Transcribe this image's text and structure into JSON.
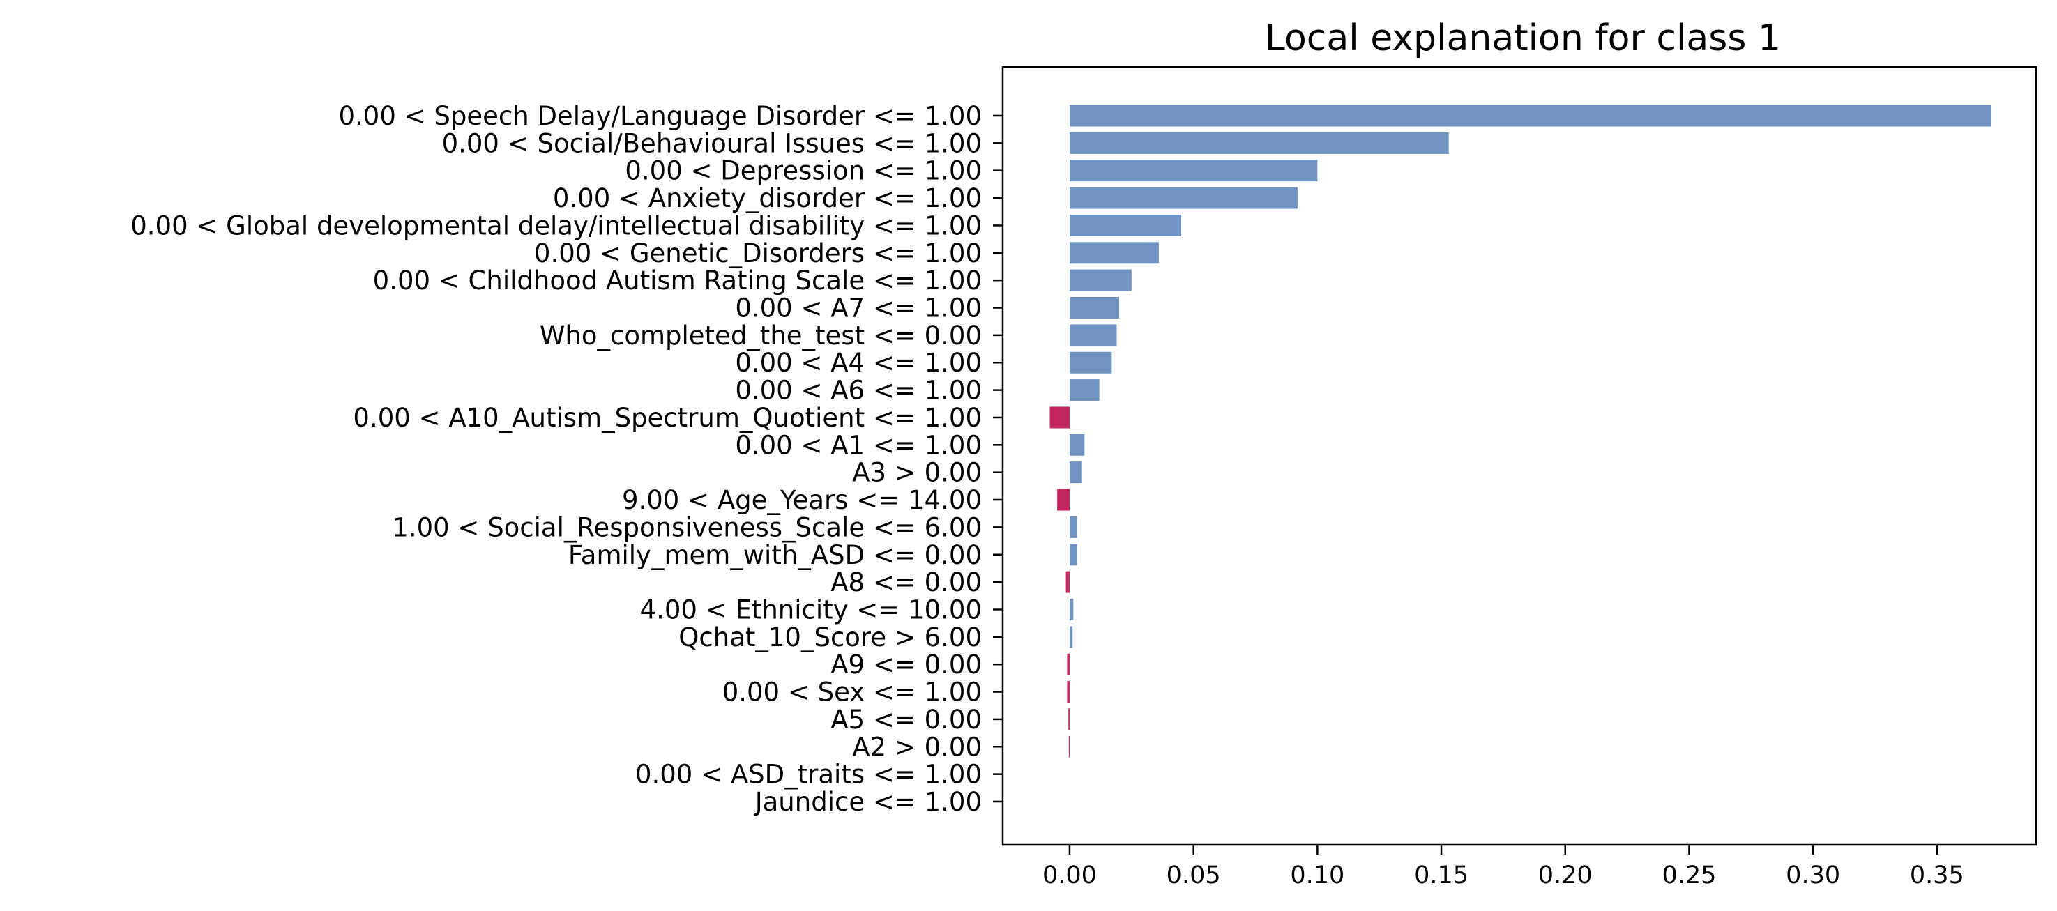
{
  "chart_data": {
    "type": "bar",
    "orientation": "horizontal",
    "title": "Local explanation for class 1",
    "xlabel": "",
    "ylabel": "",
    "xlim": [
      -0.027,
      0.39
    ],
    "xticks": [
      0.0,
      0.05,
      0.1,
      0.15,
      0.2,
      0.25,
      0.3,
      0.35
    ],
    "xtick_labels": [
      "0.00",
      "0.05",
      "0.10",
      "0.15",
      "0.20",
      "0.25",
      "0.30",
      "0.35"
    ],
    "grid": false,
    "legend": "none",
    "colors": {
      "positive": "#7193c1",
      "negative": "#c2255f"
    },
    "categories": [
      "0.00 < Speech Delay/Language Disorder <= 1.00",
      "0.00 < Social/Behavioural Issues <= 1.00",
      "0.00 < Depression <= 1.00",
      "0.00 < Anxiety_disorder <= 1.00",
      "0.00 < Global developmental delay/intellectual disability <= 1.00",
      "0.00 < Genetic_Disorders <= 1.00",
      "0.00 < Childhood Autism Rating Scale <= 1.00",
      "0.00 < A7 <= 1.00",
      "Who_completed_the_test <= 0.00",
      "0.00 < A4 <= 1.00",
      "0.00 < A6 <= 1.00",
      "0.00 < A10_Autism_Spectrum_Quotient <= 1.00",
      "0.00 < A1 <= 1.00",
      "A3 > 0.00",
      "9.00 < Age_Years <= 14.00",
      "1.00 < Social_Responsiveness_Scale <= 6.00",
      "Family_mem_with_ASD <= 0.00",
      "A8 <= 0.00",
      "4.00 < Ethnicity <= 10.00",
      "Qchat_10_Score > 6.00",
      "A9 <= 0.00",
      "0.00 < Sex <= 1.00",
      "A5 <= 0.00",
      "A2 > 0.00",
      "0.00 < ASD_traits <= 1.00",
      "Jaundice <= 1.00"
    ],
    "values": [
      0.372,
      0.153,
      0.1,
      0.092,
      0.045,
      0.036,
      0.025,
      0.02,
      0.019,
      0.017,
      0.012,
      -0.008,
      0.006,
      0.005,
      -0.005,
      0.003,
      0.003,
      -0.0015,
      0.0015,
      0.0012,
      -0.001,
      -0.001,
      -0.0005,
      -0.0003,
      0.0,
      0.0
    ]
  }
}
